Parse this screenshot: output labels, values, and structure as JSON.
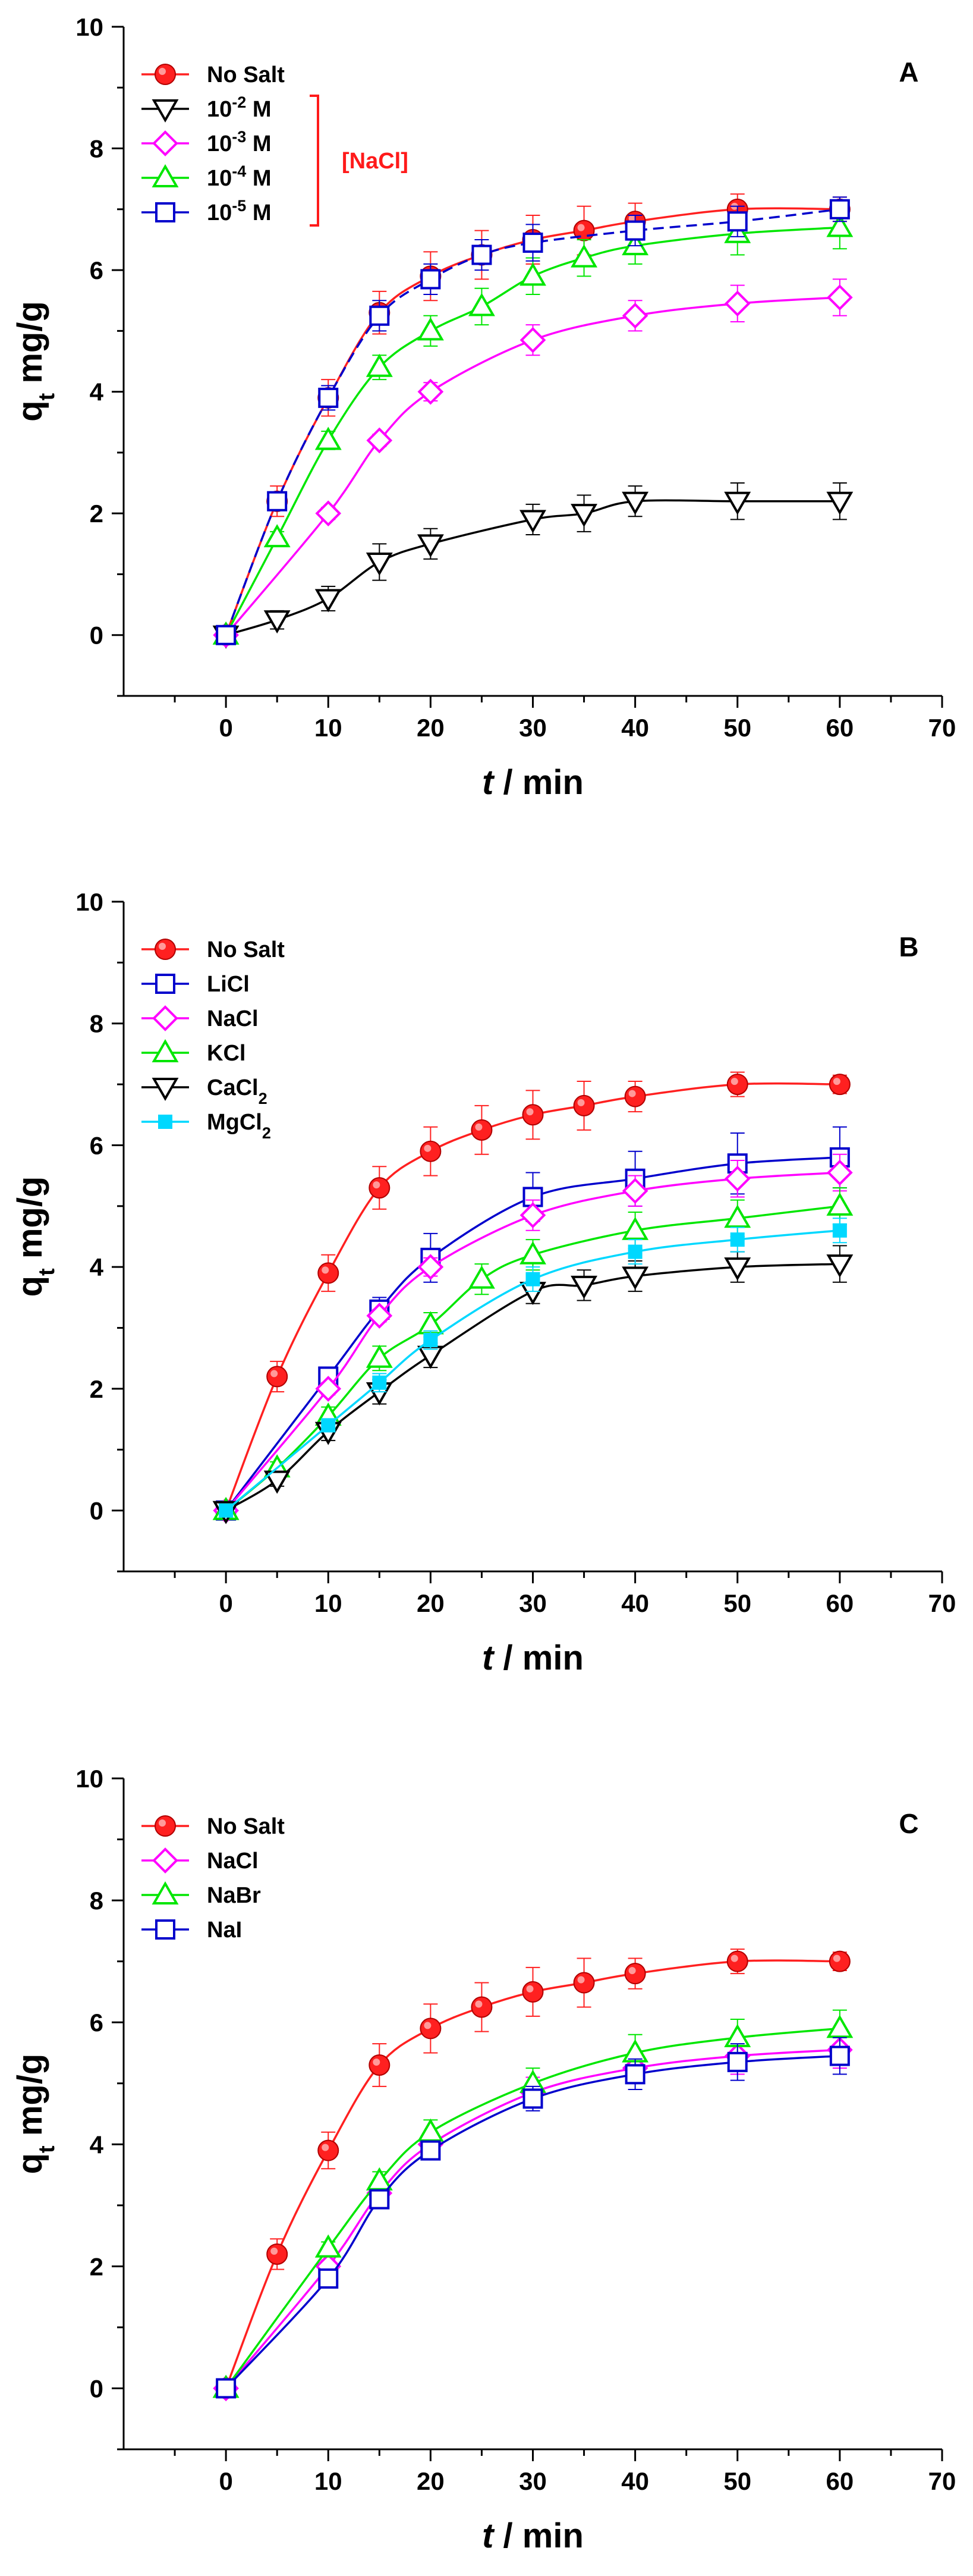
{
  "chart_data": [
    {
      "type": "line",
      "panel": "A",
      "title": "",
      "xlabel_italic": "t",
      "xlabel_unit": " / min",
      "ylabel_main": "q",
      "ylabel_sub": "t",
      "ylabel_unit": " mg/g",
      "xlim": [
        -10,
        70
      ],
      "ylim": [
        -1,
        10
      ],
      "xticks": [
        0,
        10,
        20,
        30,
        40,
        50,
        60,
        70
      ],
      "yticks": [
        0,
        2,
        4,
        6,
        8,
        10
      ],
      "legend_position": "top-left",
      "bracket": {
        "label": "[NaCl]",
        "color": "#ff1a1a",
        "series_range": [
          1,
          4
        ]
      },
      "series": [
        {
          "name": "No Salt",
          "name_main": "No Salt",
          "name_sup": "",
          "name_tail": "",
          "marker": "ball",
          "color": "#ff2020",
          "x": [
            0,
            5,
            10,
            15,
            20,
            25,
            30,
            35,
            40,
            50,
            60
          ],
          "y": [
            0,
            2.2,
            3.9,
            5.3,
            5.9,
            6.25,
            6.5,
            6.65,
            6.8,
            7.0,
            7.0
          ],
          "err": [
            0,
            0.25,
            0.3,
            0.35,
            0.4,
            0.4,
            0.4,
            0.4,
            0.3,
            0.25,
            0.2
          ]
        },
        {
          "name": "10-2 M",
          "name_main": "10",
          "name_sup": "-2",
          "name_tail": " M",
          "marker": "triangle-down",
          "color": "#000000",
          "x": [
            0,
            5,
            10,
            15,
            20,
            30,
            35,
            40,
            50,
            60
          ],
          "y": [
            0,
            0.25,
            0.6,
            1.2,
            1.5,
            1.9,
            2.0,
            2.2,
            2.2,
            2.2
          ],
          "err": [
            0,
            0.15,
            0.2,
            0.3,
            0.25,
            0.25,
            0.3,
            0.25,
            0.3,
            0.3
          ]
        },
        {
          "name": "10-3 M",
          "name_main": "10",
          "name_sup": "-3",
          "name_tail": " M",
          "marker": "diamond",
          "color": "#ff00ff",
          "x": [
            0,
            10,
            15,
            20,
            30,
            40,
            50,
            60
          ],
          "y": [
            0,
            2.0,
            3.2,
            4.0,
            4.85,
            5.25,
            5.45,
            5.55
          ],
          "err": [
            0,
            0.1,
            0.1,
            0.15,
            0.25,
            0.25,
            0.3,
            0.3
          ]
        },
        {
          "name": "10-4 M",
          "name_main": "10",
          "name_sup": "-4",
          "name_tail": " M",
          "marker": "triangle-up",
          "color": "#00e600",
          "x": [
            0,
            5,
            10,
            15,
            20,
            25,
            30,
            35,
            40,
            50,
            60
          ],
          "y": [
            0,
            1.6,
            3.2,
            4.4,
            5.0,
            5.4,
            5.9,
            6.2,
            6.4,
            6.6,
            6.7
          ],
          "err": [
            0,
            0.1,
            0.15,
            0.2,
            0.25,
            0.3,
            0.3,
            0.3,
            0.3,
            0.35,
            0.35
          ]
        },
        {
          "name": "10-5 M",
          "name_main": "10",
          "name_sup": "-5",
          "name_tail": " M",
          "marker": "square",
          "color": "#0000cc",
          "dashed": true,
          "x": [
            0,
            5,
            10,
            15,
            20,
            25,
            30,
            40,
            50,
            60
          ],
          "y": [
            0,
            2.2,
            3.9,
            5.25,
            5.85,
            6.25,
            6.45,
            6.65,
            6.8,
            7.0
          ],
          "err": [
            0,
            0.15,
            0.2,
            0.25,
            0.25,
            0.25,
            0.3,
            0.25,
            0.25,
            0.2
          ]
        }
      ]
    },
    {
      "type": "line",
      "panel": "B",
      "title": "",
      "xlabel_italic": "t",
      "xlabel_unit": " / min",
      "ylabel_main": "q",
      "ylabel_sub": "t",
      "ylabel_unit": " mg/g",
      "xlim": [
        -10,
        70
      ],
      "ylim": [
        -1,
        10
      ],
      "xticks": [
        0,
        10,
        20,
        30,
        40,
        50,
        60,
        70
      ],
      "yticks": [
        0,
        2,
        4,
        6,
        8,
        10
      ],
      "legend_position": "top-left",
      "series": [
        {
          "name": "No Salt",
          "name_main": "No Salt",
          "name_sub": "",
          "marker": "ball",
          "color": "#ff2020",
          "x": [
            0,
            5,
            10,
            15,
            20,
            25,
            30,
            35,
            40,
            50,
            60
          ],
          "y": [
            0,
            2.2,
            3.9,
            5.3,
            5.9,
            6.25,
            6.5,
            6.65,
            6.8,
            7.0,
            7.0
          ],
          "err": [
            0,
            0.25,
            0.3,
            0.35,
            0.4,
            0.4,
            0.4,
            0.4,
            0.25,
            0.2,
            0.15
          ]
        },
        {
          "name": "LiCl",
          "name_main": "LiCl",
          "name_sub": "",
          "marker": "square",
          "color": "#0000cc",
          "x": [
            0,
            10,
            15,
            20,
            30,
            40,
            50,
            60
          ],
          "y": [
            0,
            2.2,
            3.3,
            4.15,
            5.15,
            5.45,
            5.7,
            5.8
          ],
          "err": [
            0,
            0.15,
            0.2,
            0.4,
            0.4,
            0.45,
            0.5,
            0.5
          ]
        },
        {
          "name": "NaCl",
          "name_main": "NaCl",
          "name_sub": "",
          "marker": "diamond",
          "color": "#ff00ff",
          "x": [
            0,
            10,
            15,
            20,
            30,
            40,
            50,
            60
          ],
          "y": [
            0,
            2.0,
            3.2,
            4.0,
            4.85,
            5.25,
            5.45,
            5.55
          ],
          "err": [
            0,
            0.1,
            0.1,
            0.15,
            0.25,
            0.25,
            0.3,
            0.3
          ]
        },
        {
          "name": "KCl",
          "name_main": "KCl",
          "name_sub": "",
          "marker": "triangle-up",
          "color": "#00e600",
          "x": [
            0,
            5,
            10,
            15,
            20,
            25,
            30,
            40,
            50,
            60
          ],
          "y": [
            0,
            0.7,
            1.55,
            2.5,
            3.05,
            3.8,
            4.2,
            4.6,
            4.8,
            5.0
          ],
          "err": [
            0,
            0.1,
            0.15,
            0.2,
            0.2,
            0.25,
            0.25,
            0.3,
            0.3,
            0.3
          ]
        },
        {
          "name": "CaCl2",
          "name_main": "CaCl",
          "name_sub": "2",
          "marker": "triangle-down",
          "color": "#000000",
          "x": [
            0,
            5,
            10,
            15,
            20,
            30,
            35,
            40,
            50,
            60
          ],
          "y": [
            0,
            0.5,
            1.3,
            1.95,
            2.55,
            3.6,
            3.7,
            3.85,
            4.0,
            4.05
          ],
          "err": [
            0,
            0.1,
            0.15,
            0.2,
            0.2,
            0.2,
            0.25,
            0.25,
            0.25,
            0.3
          ]
        },
        {
          "name": "MgCl2",
          "name_main": "MgCl",
          "name_sub": "2",
          "marker": "small-square",
          "color": "#00d8ff",
          "x": [
            0,
            10,
            15,
            20,
            30,
            40,
            50,
            60
          ],
          "y": [
            0,
            1.4,
            2.1,
            2.8,
            3.8,
            4.25,
            4.45,
            4.6
          ],
          "err": [
            0,
            0.1,
            0.15,
            0.15,
            0.2,
            0.2,
            0.2,
            0.2
          ]
        }
      ]
    },
    {
      "type": "line",
      "panel": "C",
      "title": "",
      "xlabel_italic": "t",
      "xlabel_unit": " / min",
      "ylabel_main": "q",
      "ylabel_sub": "t",
      "ylabel_unit": " mg/g",
      "xlim": [
        -10,
        70
      ],
      "ylim": [
        -1,
        10
      ],
      "xticks": [
        0,
        10,
        20,
        30,
        40,
        50,
        60,
        70
      ],
      "yticks": [
        0,
        2,
        4,
        6,
        8,
        10
      ],
      "legend_position": "top-left",
      "series": [
        {
          "name": "No Salt",
          "name_main": "No Salt",
          "marker": "ball",
          "color": "#ff2020",
          "x": [
            0,
            5,
            10,
            15,
            20,
            25,
            30,
            35,
            40,
            50,
            60
          ],
          "y": [
            0,
            2.2,
            3.9,
            5.3,
            5.9,
            6.25,
            6.5,
            6.65,
            6.8,
            7.0,
            7.0
          ],
          "err": [
            0,
            0.25,
            0.3,
            0.35,
            0.4,
            0.4,
            0.4,
            0.4,
            0.25,
            0.2,
            0.15
          ]
        },
        {
          "name": "NaCl",
          "name_main": "NaCl",
          "marker": "diamond",
          "color": "#ff00ff",
          "x": [
            0,
            10,
            15,
            20,
            30,
            40,
            50,
            60
          ],
          "y": [
            0,
            2.0,
            3.2,
            4.0,
            4.85,
            5.25,
            5.45,
            5.55
          ],
          "err": [
            0,
            0.1,
            0.1,
            0.15,
            0.25,
            0.25,
            0.3,
            0.3
          ]
        },
        {
          "name": "NaBr",
          "name_main": "NaBr",
          "marker": "triangle-up",
          "color": "#00e600",
          "x": [
            0,
            10,
            15,
            20,
            30,
            40,
            50,
            60
          ],
          "y": [
            0,
            2.3,
            3.4,
            4.2,
            5.0,
            5.5,
            5.75,
            5.9
          ],
          "err": [
            0,
            0.1,
            0.15,
            0.2,
            0.25,
            0.3,
            0.3,
            0.3
          ]
        },
        {
          "name": "NaI",
          "name_main": "NaI",
          "marker": "square",
          "color": "#0000cc",
          "x": [
            0,
            10,
            15,
            20,
            30,
            40,
            50,
            60
          ],
          "y": [
            0,
            1.8,
            3.1,
            3.9,
            4.75,
            5.15,
            5.35,
            5.45
          ],
          "err": [
            0,
            0.1,
            0.1,
            0.15,
            0.2,
            0.25,
            0.3,
            0.3
          ]
        }
      ]
    }
  ]
}
